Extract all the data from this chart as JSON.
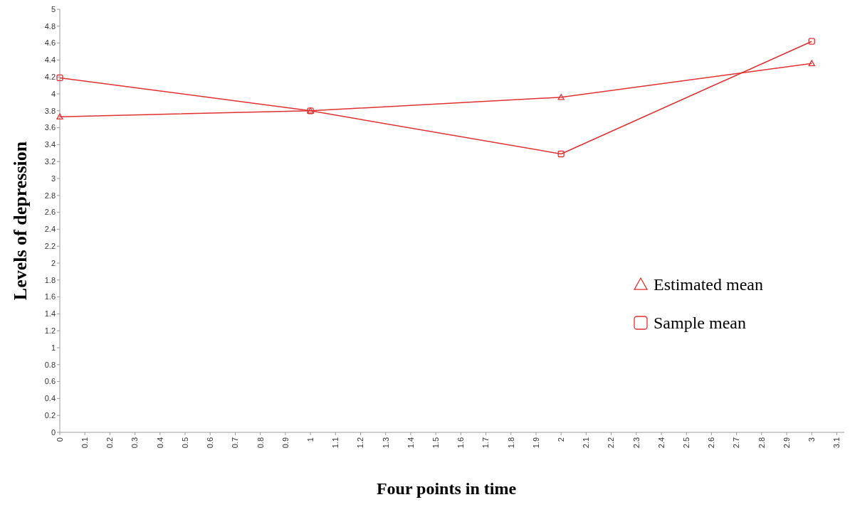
{
  "chart_data": {
    "type": "line",
    "xlabel": "Four points in time",
    "ylabel": "Levels of depression",
    "xlim": [
      0,
      3.13
    ],
    "xticks": [
      0,
      0.1,
      0.2,
      0.3,
      0.4,
      0.5,
      0.6,
      0.7,
      0.8,
      0.9,
      1,
      1.1,
      1.2,
      1.3,
      1.4,
      1.5,
      1.6,
      1.7,
      1.8,
      1.9,
      2,
      2.1,
      2.2,
      2.3,
      2.4,
      2.5,
      2.6,
      2.7,
      2.8,
      2.9,
      3,
      3.1
    ],
    "ylim": [
      0,
      5
    ],
    "yticks": [
      0,
      0.2,
      0.4,
      0.6,
      0.8,
      1,
      1.2,
      1.4,
      1.6,
      1.8,
      2,
      2.2,
      2.4,
      2.6,
      2.8,
      3,
      3.2,
      3.4,
      3.6,
      3.8,
      4,
      4.2,
      4.4,
      4.6,
      4.8,
      5
    ],
    "x": [
      0,
      1,
      2,
      3
    ],
    "legend": "right",
    "grid": false,
    "line_style": "solid",
    "series": [
      {
        "name": "Estimated mean",
        "color": "#e03030",
        "marker": "triangle",
        "values": [
          3.73,
          3.8,
          3.96,
          4.36
        ]
      },
      {
        "name": "Sample mean",
        "color": "#e03030",
        "marker": "square",
        "values": [
          4.19,
          3.8,
          3.29,
          4.62
        ]
      }
    ]
  }
}
